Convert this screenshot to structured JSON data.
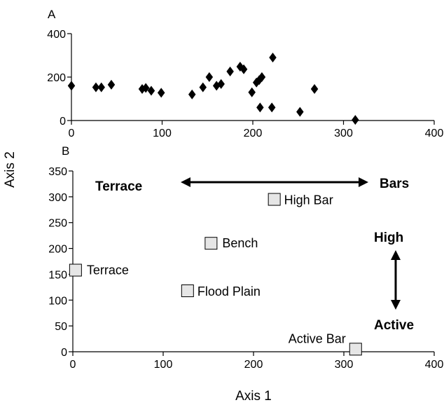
{
  "figure": {
    "y_axis_title": "Axis 2",
    "x_axis_title": "Axis 1"
  },
  "chart_data": [
    {
      "panel_label": "A",
      "type": "scatter",
      "marker": "diamond",
      "color": "#000000",
      "xlim": [
        0,
        400
      ],
      "ylim": [
        0,
        400
      ],
      "x_ticks": [
        0,
        100,
        200,
        300,
        400
      ],
      "y_ticks": [
        0,
        200,
        400
      ],
      "grid": false,
      "points": [
        {
          "x": 0,
          "y": 160
        },
        {
          "x": 27,
          "y": 153
        },
        {
          "x": 33,
          "y": 153
        },
        {
          "x": 44,
          "y": 165
        },
        {
          "x": 78,
          "y": 145
        },
        {
          "x": 82,
          "y": 150
        },
        {
          "x": 88,
          "y": 137
        },
        {
          "x": 99,
          "y": 128
        },
        {
          "x": 133,
          "y": 120
        },
        {
          "x": 145,
          "y": 153
        },
        {
          "x": 152,
          "y": 200
        },
        {
          "x": 160,
          "y": 160
        },
        {
          "x": 165,
          "y": 168
        },
        {
          "x": 175,
          "y": 226
        },
        {
          "x": 186,
          "y": 248
        },
        {
          "x": 190,
          "y": 236
        },
        {
          "x": 199,
          "y": 130
        },
        {
          "x": 204,
          "y": 175
        },
        {
          "x": 207,
          "y": 186
        },
        {
          "x": 210,
          "y": 200
        },
        {
          "x": 208,
          "y": 60
        },
        {
          "x": 221,
          "y": 60
        },
        {
          "x": 222,
          "y": 290
        },
        {
          "x": 252,
          "y": 40
        },
        {
          "x": 268,
          "y": 145
        },
        {
          "x": 313,
          "y": 3
        }
      ]
    },
    {
      "panel_label": "B",
      "type": "scatter",
      "marker": "square",
      "marker_fill": "#e6e6e6",
      "xlim": [
        0,
        400
      ],
      "ylim": [
        0,
        350
      ],
      "x_ticks": [
        0,
        100,
        200,
        300,
        400
      ],
      "y_ticks": [
        0,
        50,
        100,
        150,
        200,
        250,
        300,
        350
      ],
      "grid": false,
      "points": [
        {
          "x": 3,
          "y": 158,
          "label": "Terrace"
        },
        {
          "x": 127,
          "y": 118,
          "label": "Flood Plain"
        },
        {
          "x": 153,
          "y": 210,
          "label": "Bench"
        },
        {
          "x": 223,
          "y": 295,
          "label": "High Bar"
        },
        {
          "x": 313,
          "y": 5,
          "label": "Active Bar"
        }
      ],
      "annotations": {
        "horizontal_arrow": {
          "left": "Terrace",
          "right": "Bars"
        },
        "vertical_arrow": {
          "top": "High",
          "bottom": "Active"
        }
      }
    }
  ]
}
